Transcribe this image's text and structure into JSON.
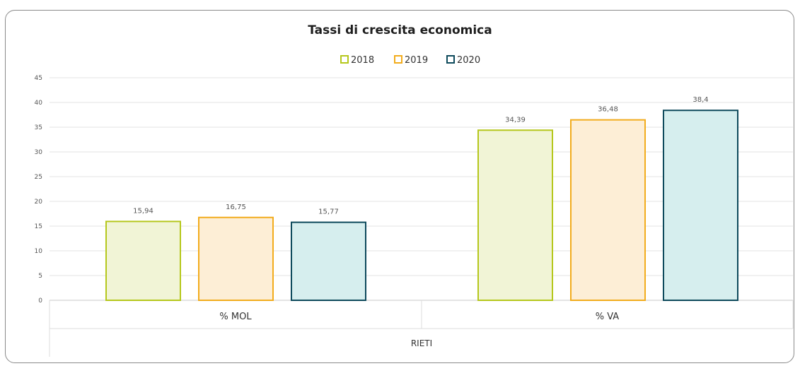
{
  "chart_data": {
    "type": "bar",
    "title": "Tassi di crescita economica",
    "categories": [
      "% MOL",
      "% VA"
    ],
    "group_label": "RIETI",
    "series": [
      {
        "name": "2018",
        "values": [
          15.94,
          34.39
        ],
        "labels": [
          "15,94",
          "34,39"
        ],
        "stroke": "#b5c71c",
        "fill": "#f1f4d6"
      },
      {
        "name": "2019",
        "values": [
          16.75,
          36.48
        ],
        "labels": [
          "16,75",
          "36,48"
        ],
        "stroke": "#f2ac1d",
        "fill": "#fdeed6"
      },
      {
        "name": "2020",
        "values": [
          15.77,
          38.4
        ],
        "labels": [
          "15,77",
          "38,4"
        ],
        "stroke": "#0e4a5c",
        "fill": "#d6eeee"
      }
    ],
    "yticks": [
      "0",
      "5",
      "10",
      "15",
      "20",
      "25",
      "30",
      "35",
      "40",
      "45"
    ],
    "ylim": [
      0,
      45
    ],
    "grid": true,
    "legend": "top-center"
  }
}
